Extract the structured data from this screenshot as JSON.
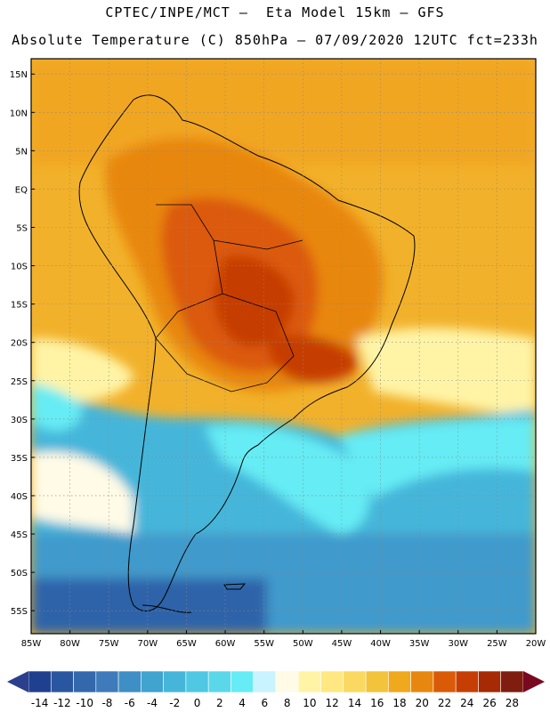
{
  "header": {
    "line1": "CPTEC/INPE/MCT –  Eta Model 15km – GFS",
    "line2": "Absolute Temperature (C) 850hPa – 07/09/2020 12UTC fct=233h"
  },
  "map": {
    "lat_labels": [
      "15N",
      "10N",
      "5N",
      "EQ",
      "5S",
      "10S",
      "15S",
      "20S",
      "25S",
      "30S",
      "35S",
      "40S",
      "45S",
      "50S",
      "55S"
    ],
    "lon_labels": [
      "85W",
      "80W",
      "75W",
      "70W",
      "65W",
      "60W",
      "55W",
      "50W",
      "45W",
      "40W",
      "35W",
      "30W",
      "25W",
      "20W"
    ],
    "lat_range": [
      17,
      -58
    ],
    "lon_range": [
      -85,
      -20
    ]
  },
  "colorbar": {
    "labels": [
      "-14",
      "-12",
      "-10",
      "-8",
      "-6",
      "-4",
      "-2",
      "0",
      "2",
      "4",
      "6",
      "8",
      "10",
      "12",
      "14",
      "16",
      "18",
      "20",
      "22",
      "24",
      "26",
      "28"
    ],
    "colors": [
      "#1f3f8f",
      "#2a55a0",
      "#3468ad",
      "#3f7bbb",
      "#3e8fc6",
      "#40a3d0",
      "#45b6da",
      "#4fc8e3",
      "#5ad8ea",
      "#66ecf4",
      "#c8f3ff",
      "#fffbe6",
      "#fff4a6",
      "#ffe882",
      "#fbd860",
      "#f3c33c",
      "#f0a81c",
      "#e8870f",
      "#db5a08",
      "#c63e04",
      "#a62a04",
      "#7e1d10"
    ],
    "arrow_low": "#2b3f8c",
    "arrow_high": "#7a0820"
  }
}
